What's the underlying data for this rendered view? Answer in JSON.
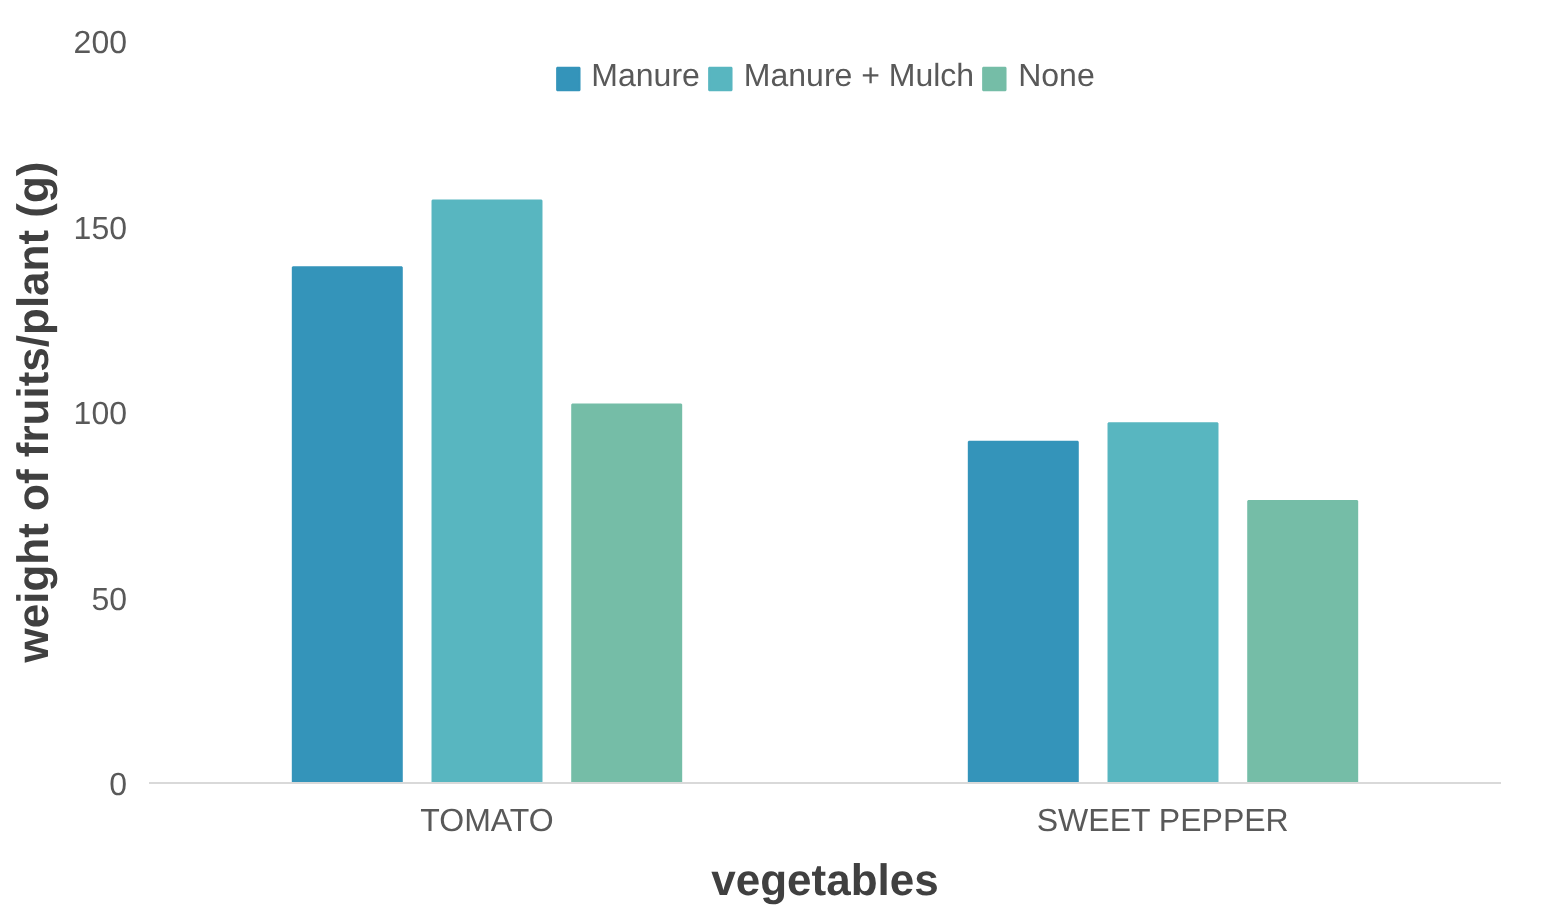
{
  "chart_data": {
    "type": "bar",
    "xlabel": "vegetables",
    "ylabel": "weight of fruits/plant (g)",
    "categories": [
      "TOMATO",
      "SWEET PEPPER"
    ],
    "series": [
      {
        "name": "Manure",
        "color": "#3494ba",
        "values": [
          139,
          92
        ]
      },
      {
        "name": "Manure + Mulch",
        "color": "#58b6c0",
        "values": [
          157,
          97
        ]
      },
      {
        "name": "None",
        "color": "#75bda7",
        "values": [
          102,
          76
        ]
      }
    ],
    "ylim": [
      0,
      200
    ],
    "yticks": [
      0,
      50,
      100,
      150,
      200
    ],
    "grid": false,
    "legend": "top"
  }
}
